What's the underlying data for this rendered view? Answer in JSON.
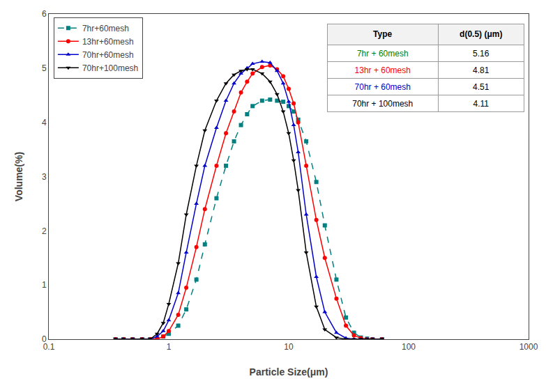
{
  "chart_data": {
    "type": "line",
    "title": "",
    "x_label": "Particle Size(μm)",
    "y_label": "Volume(%)",
    "log": "x",
    "xlim": [
      0.1,
      1000
    ],
    "xticks": [
      0.1,
      1,
      10,
      100,
      1000
    ],
    "ylim": [
      0,
      6
    ],
    "yticks": [
      0,
      1,
      2,
      3,
      4,
      5,
      6
    ],
    "grid": false,
    "legend": "upper left",
    "x": [
      0.36,
      0.42,
      0.5,
      0.6,
      0.7,
      0.8,
      0.9,
      1.0,
      1.2,
      1.4,
      1.7,
      2.0,
      2.5,
      3.0,
      3.5,
      4.0,
      4.5,
      5.0,
      6.0,
      7.0,
      8.0,
      9.0,
      10.0,
      11.0,
      12.0,
      14.0,
      17.0,
      20.0,
      25.0,
      30.0,
      35.0,
      40.0,
      45.0,
      50.0,
      60.0
    ],
    "series": [
      {
        "name": "7hr+60mesh",
        "color": "#008080",
        "marker": "square",
        "line_style": "dashed",
        "values": [
          0.0,
          0.0,
          0.0,
          0.0,
          0.0,
          0.0,
          0.05,
          0.1,
          0.25,
          0.55,
          1.1,
          1.75,
          2.6,
          3.2,
          3.65,
          3.95,
          4.15,
          4.3,
          4.4,
          4.42,
          4.4,
          4.38,
          4.3,
          4.2,
          4.05,
          3.65,
          2.9,
          2.1,
          1.1,
          0.4,
          0.12,
          0.03,
          0.01,
          0.0,
          0.0
        ]
      },
      {
        "name": "13hr+60mesh",
        "color": "#ff0000",
        "marker": "circle",
        "line_style": "solid",
        "values": [
          0.0,
          0.0,
          0.0,
          0.0,
          0.0,
          0.0,
          0.05,
          0.15,
          0.45,
          0.95,
          1.7,
          2.4,
          3.2,
          3.8,
          4.2,
          4.55,
          4.75,
          4.9,
          5.02,
          5.05,
          4.98,
          4.85,
          4.62,
          4.35,
          4.0,
          3.2,
          2.2,
          1.5,
          0.75,
          0.25,
          0.07,
          0.02,
          0.0,
          0.0,
          0.0
        ]
      },
      {
        "name": "70hr+60mesh",
        "color": "#0000cc",
        "marker": "triangle-up",
        "line_style": "solid",
        "values": [
          0.0,
          0.0,
          0.0,
          0.0,
          0.0,
          0.05,
          0.15,
          0.35,
          0.85,
          1.6,
          2.5,
          3.2,
          3.9,
          4.4,
          4.72,
          4.9,
          5.0,
          5.08,
          5.12,
          5.1,
          4.95,
          4.72,
          4.38,
          3.95,
          3.45,
          2.3,
          1.15,
          0.5,
          0.12,
          0.02,
          0.0,
          0.0,
          0.0,
          0.0,
          0.0
        ]
      },
      {
        "name": "70hr+100mesh",
        "color": "#000000",
        "marker": "triangle-down",
        "line_style": "solid",
        "values": [
          0.0,
          0.0,
          0.0,
          0.0,
          0.0,
          0.1,
          0.3,
          0.65,
          1.4,
          2.3,
          3.2,
          3.85,
          4.4,
          4.72,
          4.88,
          4.95,
          4.98,
          4.98,
          4.9,
          4.75,
          4.52,
          4.2,
          3.8,
          3.3,
          2.75,
          1.6,
          0.6,
          0.18,
          0.03,
          0.0,
          0.0,
          0.0,
          0.0,
          0.0,
          0.0
        ]
      }
    ],
    "table": {
      "columns": [
        "Type",
        "d(0.5) (μm)"
      ],
      "rows": [
        {
          "type": "7hr + 60mesh",
          "d": 5.16,
          "color": "#008000"
        },
        {
          "type": "13hr + 60mesh",
          "d": 4.81,
          "color": "#ff0000"
        },
        {
          "type": "70hr + 60mesh",
          "d": 4.51,
          "color": "#0000cc"
        },
        {
          "type": "70hr + 100mesh",
          "d": 4.11,
          "color": "#000000"
        }
      ]
    }
  }
}
